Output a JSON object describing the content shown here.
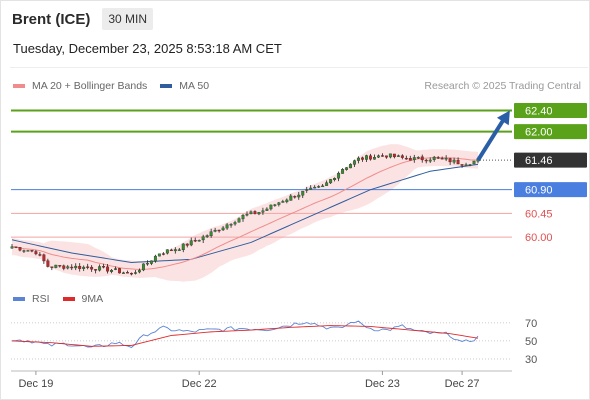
{
  "header": {
    "instrument": "Brent (ICE)",
    "timeframe": "30 MIN",
    "timestamp": "Tuesday, December 23, 2025 8:53:18 AM CET"
  },
  "legend": {
    "ma20": {
      "label": "MA 20 + Bollinger Bands",
      "color": "#f08c8c"
    },
    "ma50": {
      "label": "MA 50",
      "color": "#2f5d9e"
    },
    "rsi": {
      "label": "RSI",
      "color": "#5b84d6"
    },
    "ma9": {
      "label": "9MA",
      "color": "#e02a2a"
    }
  },
  "watermark": "Research © 2025 Trading Central",
  "colors": {
    "resistance": "#5aa21a",
    "current": "#333333",
    "pivot": "#4a7fe0",
    "support": "#f2a3a3",
    "arrow": "#2a5fa8",
    "candle_up": "#3a8a35",
    "candle_down": "#c42424"
  },
  "chart_data": {
    "type": "candlestick",
    "y_range": [
      59.15,
      62.6
    ],
    "levels": [
      {
        "value": 62.4,
        "label": "62.40",
        "kind": "resistance"
      },
      {
        "value": 62.0,
        "label": "62.00",
        "kind": "resistance"
      },
      {
        "value": 61.46,
        "label": "61.46",
        "kind": "current"
      },
      {
        "value": 60.9,
        "label": "60.90",
        "kind": "pivot"
      },
      {
        "value": 60.45,
        "label": "60.45",
        "kind": "support"
      },
      {
        "value": 60.0,
        "label": "60.00",
        "kind": "support"
      }
    ],
    "x_ticks": [
      "Dec 19",
      "Dec 22",
      "Dec 23",
      "Dec 27"
    ],
    "x_tick_positions": [
      6,
      47,
      93,
      113
    ],
    "bar_count": 118,
    "price_anchors": [
      [
        0,
        59.82
      ],
      [
        6,
        59.72
      ],
      [
        9,
        59.45
      ],
      [
        15,
        59.44
      ],
      [
        20,
        59.42
      ],
      [
        25,
        59.38
      ],
      [
        30,
        59.3
      ],
      [
        33,
        59.45
      ],
      [
        37,
        59.7
      ],
      [
        42,
        59.8
      ],
      [
        48,
        60.0
      ],
      [
        53,
        60.2
      ],
      [
        58,
        60.4
      ],
      [
        63,
        60.5
      ],
      [
        68,
        60.7
      ],
      [
        73,
        60.85
      ],
      [
        78,
        60.95
      ],
      [
        83,
        61.3
      ],
      [
        87,
        61.48
      ],
      [
        90,
        61.52
      ],
      [
        94,
        61.55
      ],
      [
        98,
        61.5
      ],
      [
        102,
        61.48
      ],
      [
        106,
        61.5
      ],
      [
        110,
        61.45
      ],
      [
        113,
        61.4
      ],
      [
        115,
        61.42
      ],
      [
        117,
        61.46
      ]
    ],
    "ma50_anchors": [
      [
        0,
        59.95
      ],
      [
        15,
        59.7
      ],
      [
        30,
        59.52
      ],
      [
        45,
        59.58
      ],
      [
        60,
        59.9
      ],
      [
        75,
        60.4
      ],
      [
        90,
        60.9
      ],
      [
        105,
        61.25
      ],
      [
        117,
        61.38
      ]
    ],
    "projection": {
      "from_index": 117,
      "from_value": 61.46,
      "to_index": 125,
      "to_value": 62.4
    },
    "rsi": {
      "ticks": [
        70,
        50,
        30
      ],
      "range": [
        20,
        82
      ],
      "rsi_anchors": [
        [
          0,
          52
        ],
        [
          5,
          50
        ],
        [
          9,
          45
        ],
        [
          14,
          47
        ],
        [
          20,
          42
        ],
        [
          26,
          48
        ],
        [
          30,
          44
        ],
        [
          34,
          58
        ],
        [
          38,
          64
        ],
        [
          44,
          60
        ],
        [
          50,
          62
        ],
        [
          58,
          64
        ],
        [
          64,
          63
        ],
        [
          70,
          68
        ],
        [
          74,
          72
        ],
        [
          78,
          66
        ],
        [
          82,
          63
        ],
        [
          86,
          72
        ],
        [
          90,
          64
        ],
        [
          94,
          62
        ],
        [
          98,
          66
        ],
        [
          102,
          60
        ],
        [
          106,
          58
        ],
        [
          110,
          57
        ],
        [
          113,
          47
        ],
        [
          117,
          54
        ]
      ],
      "ma9_anchors": [
        [
          0,
          50
        ],
        [
          10,
          48
        ],
        [
          20,
          44
        ],
        [
          30,
          45
        ],
        [
          40,
          56
        ],
        [
          50,
          60
        ],
        [
          60,
          62
        ],
        [
          70,
          65
        ],
        [
          80,
          67
        ],
        [
          90,
          66
        ],
        [
          100,
          62
        ],
        [
          110,
          58
        ],
        [
          117,
          53
        ]
      ]
    }
  }
}
